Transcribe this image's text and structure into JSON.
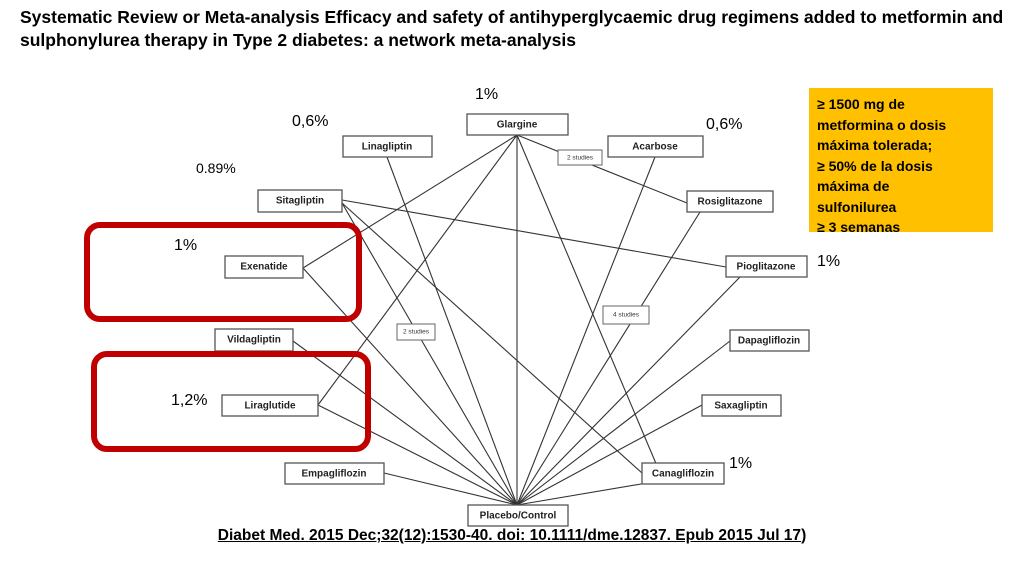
{
  "slide": {
    "title": "Systematic Review or Meta-analysis Efficacy and safety of antihyperglycaemic drug regimens added to metformin and sulphonylurea therapy in Type 2 diabetes: a network meta-analysis"
  },
  "network": {
    "nodes": {
      "glargine": "Glargine",
      "linagliptin": "Linagliptin",
      "acarbose": "Acarbose",
      "sitagliptin": "Sitagliptin",
      "rosiglitazone": "Rosiglitazone",
      "exenatide": "Exenatide",
      "pioglitazone": "Pioglitazone",
      "vildagliptin": "Vildagliptin",
      "dapagliflozin": "Dapagliflozin",
      "liraglutide": "Liraglutide",
      "saxagliptin": "Saxagliptin",
      "empagliflozin": "Empagliflozin",
      "canagliflozin": "Canagliflozin",
      "placebo": "Placebo/Control"
    },
    "study_labels": {
      "glargine_rosiglitazone": "2 studies",
      "sitagliptin_placebo": "2 studies",
      "acarbose_placebo": "4 studies"
    }
  },
  "percentages": {
    "glargine": "1%",
    "linagliptin": "0,6%",
    "acarbose": "0,6%",
    "sitagliptin": "0.89%",
    "exenatide": "1%",
    "pioglitazone": "1%",
    "liraglutide": "1,2%",
    "canagliflozin": "1%"
  },
  "note": {
    "line1": "≥ 1500 mg de",
    "line2": "metformina o dosis",
    "line3": "máxima tolerada;",
    "line4": " ≥ 50% de la dosis",
    "line5": "máxima de",
    "line6": "sulfonilurea",
    "line7": "≥ 3 semanas"
  },
  "citation": {
    "text": "Diabet Med. 2015 Dec;32(12):1530-40. doi: 10.1111/dme.12837. Epub 2015 Jul 17",
    "suffix": ")"
  },
  "colors": {
    "highlight": "#c00000",
    "note_background": "#ffc000"
  }
}
